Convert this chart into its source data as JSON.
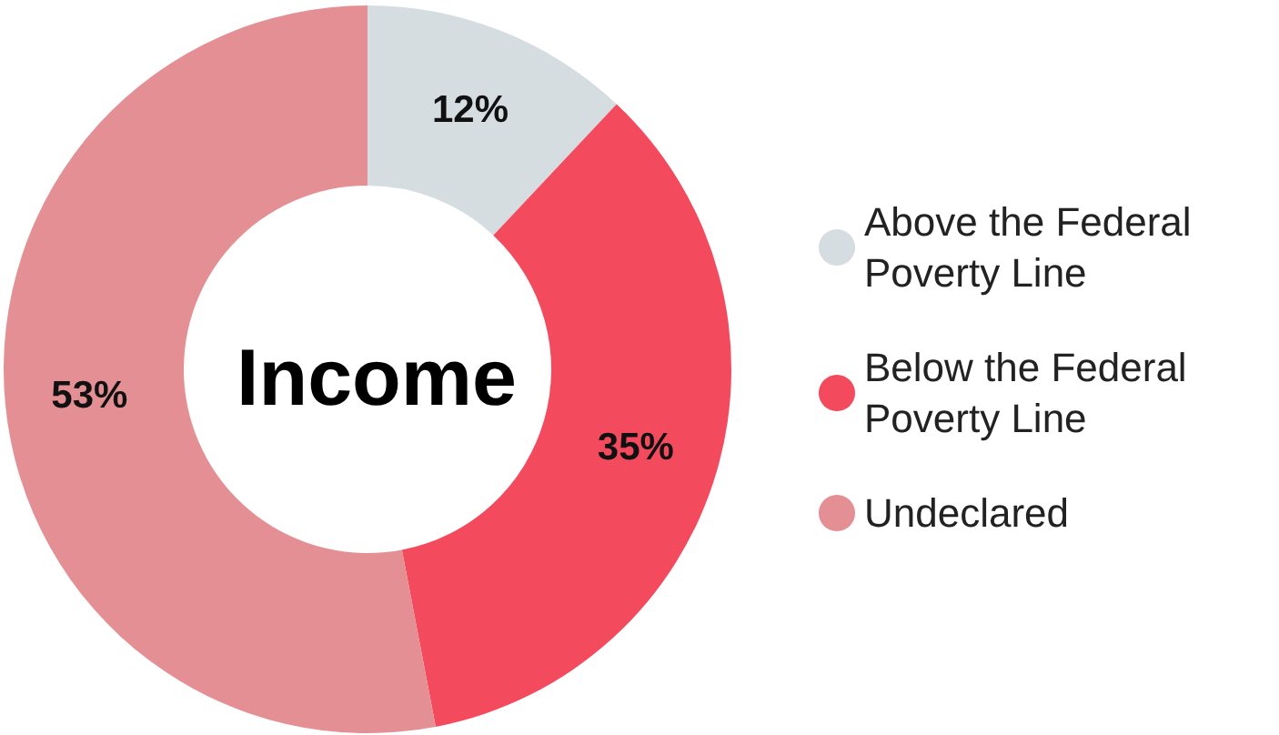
{
  "chart_data": {
    "type": "donut",
    "title": "Income",
    "categories": [
      "Above the Federal Poverty Line",
      "Below the Federal Poverty Line",
      "Undeclared"
    ],
    "values": [
      12,
      35,
      53
    ],
    "colors": [
      "#d5dde1",
      "#f44a5e",
      "#e48f93"
    ],
    "value_labels": [
      "12%",
      "35%",
      "53%"
    ],
    "legend": "right"
  }
}
